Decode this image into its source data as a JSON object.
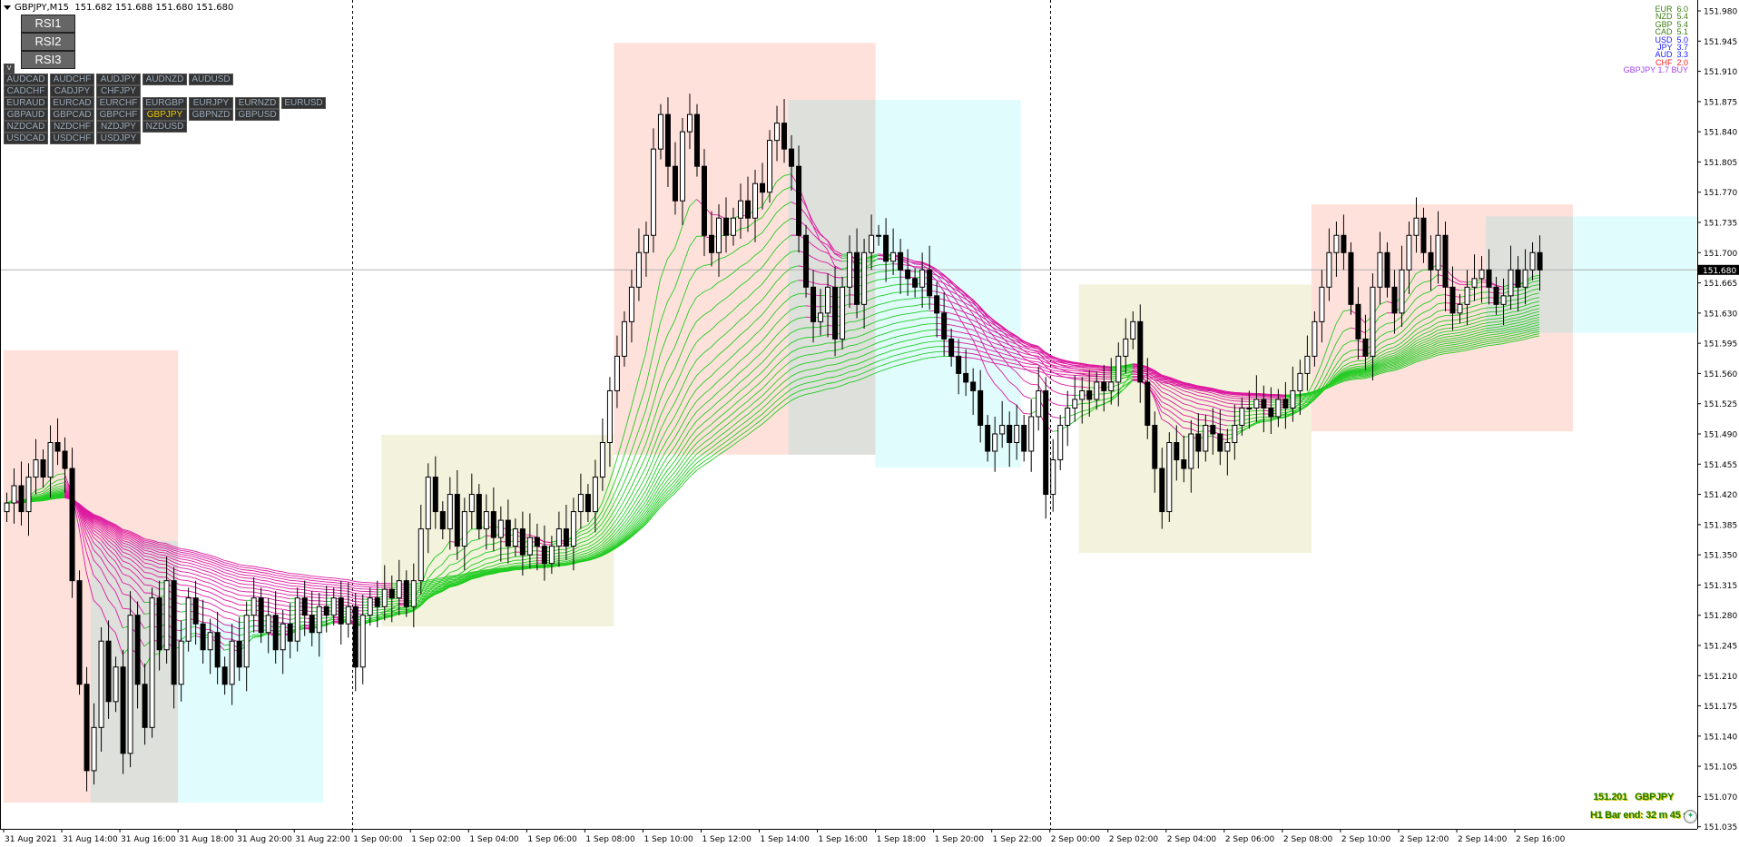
{
  "header": {
    "symbol_tf": "GBPJPY,M15",
    "ohlc": "151.682 151.688 151.680 151.680"
  },
  "rsi_buttons": [
    "RSI1",
    "RSI2",
    "RSI3"
  ],
  "pair_panel": {
    "toggle": "v",
    "rows": [
      [
        "AUDCAD",
        "AUDCHF",
        "AUDJPY",
        "AUDNZD",
        "AUDUSD"
      ],
      [
        "CADCHF",
        "CADJPY",
        "CHFJPY"
      ],
      [
        "EURAUD",
        "EURCAD",
        "EURCHF",
        "EURGBP",
        "EURJPY",
        "EURNZD",
        "EURUSD"
      ],
      [
        "GBPAUD",
        "GBPCAD",
        "GBPCHF",
        "GBPJPY",
        "GBPNZD",
        "GBPUSD"
      ],
      [
        "NZDCAD",
        "NZDCHF",
        "NZDJPY",
        "NZDUSD"
      ],
      [
        "USDCAD",
        "USDCHF",
        "USDJPY"
      ]
    ],
    "active": "GBPJPY",
    "active_color": "#f0c800"
  },
  "strength_legend": [
    {
      "cur": "EUR",
      "val": "6.0",
      "color": "#3a7d10"
    },
    {
      "cur": "NZD",
      "val": "5.4",
      "color": "#3a7d10"
    },
    {
      "cur": "GBP",
      "val": "5.4",
      "color": "#3a7d10"
    },
    {
      "cur": "CAD",
      "val": "5.1",
      "color": "#3a7d10"
    },
    {
      "cur": "USD",
      "val": "5.0",
      "color": "#2020ff"
    },
    {
      "cur": "JPY",
      "val": "3.7",
      "color": "#2020ff"
    },
    {
      "cur": "AUD",
      "val": "3.3",
      "color": "#2020ff"
    },
    {
      "cur": "CHF",
      "val": "2.0",
      "color": "#ff2020"
    },
    {
      "cur": "GBPJPY 1.7 BUY",
      "val": "",
      "color": "#a040f0"
    }
  ],
  "info": {
    "price_line": "151.201   GBPJPY",
    "bar_end": "H1 Bar end: 32 m 45 s"
  },
  "chart_data": {
    "type": "candlestick",
    "symbol": "GBPJPY",
    "timeframe": "M15",
    "ylim": [
      151.035,
      151.98
    ],
    "y_ticks": [
      "151.980",
      "151.945",
      "151.910",
      "151.875",
      "151.840",
      "151.805",
      "151.770",
      "151.735",
      "151.700",
      "151.665",
      "151.630",
      "151.595",
      "151.560",
      "151.525",
      "151.490",
      "151.455",
      "151.420",
      "151.385",
      "151.350",
      "151.315",
      "151.280",
      "151.245",
      "151.210",
      "151.175",
      "151.140",
      "151.105",
      "151.070",
      "151.035"
    ],
    "x_ticks": [
      "31 Aug 2021",
      "31 Aug 14:00",
      "31 Aug 16:00",
      "31 Aug 18:00",
      "31 Aug 20:00",
      "31 Aug 22:00",
      "1 Sep 00:00",
      "1 Sep 02:00",
      "1 Sep 04:00",
      "1 Sep 06:00",
      "1 Sep 08:00",
      "1 Sep 10:00",
      "1 Sep 12:00",
      "1 Sep 14:00",
      "1 Sep 16:00",
      "1 Sep 18:00",
      "1 Sep 20:00",
      "1 Sep 22:00",
      "2 Sep 00:00",
      "2 Sep 02:00",
      "2 Sep 04:00",
      "2 Sep 06:00",
      "2 Sep 08:00",
      "2 Sep 10:00",
      "2 Sep 12:00",
      "2 Sep 14:00",
      "2 Sep 16:00"
    ],
    "current_price": "151.680",
    "closes": [
      151.41,
      151.43,
      151.4,
      151.44,
      151.46,
      151.44,
      151.48,
      151.47,
      151.45,
      151.32,
      151.2,
      151.1,
      151.15,
      151.25,
      151.18,
      151.22,
      151.12,
      151.28,
      151.2,
      151.15,
      151.3,
      151.24,
      151.32,
      151.2,
      151.25,
      151.3,
      151.27,
      151.24,
      151.26,
      151.22,
      151.2,
      151.25,
      151.22,
      151.28,
      151.3,
      151.26,
      151.28,
      151.24,
      151.27,
      151.25,
      151.3,
      151.28,
      151.26,
      151.29,
      151.28,
      151.3,
      151.27,
      151.29,
      151.22,
      151.28,
      151.3,
      151.29,
      151.31,
      151.3,
      151.32,
      151.29,
      151.32,
      151.38,
      151.44,
      151.4,
      151.38,
      151.42,
      151.36,
      151.4,
      151.42,
      151.38,
      151.4,
      151.37,
      151.39,
      151.36,
      151.38,
      151.35,
      151.37,
      151.36,
      151.34,
      151.36,
      151.38,
      151.36,
      151.4,
      151.42,
      151.4,
      151.44,
      151.48,
      151.54,
      151.58,
      151.62,
      151.66,
      151.7,
      151.72,
      151.82,
      151.86,
      151.8,
      151.76,
      151.84,
      151.86,
      151.8,
      151.72,
      151.7,
      151.74,
      151.72,
      151.74,
      151.76,
      151.74,
      151.78,
      151.77,
      151.83,
      151.85,
      151.82,
      151.8,
      151.72,
      151.66,
      151.62,
      151.63,
      151.66,
      151.6,
      151.66,
      151.7,
      151.64,
      151.7,
      151.72,
      151.72,
      151.69,
      151.7,
      151.68,
      151.67,
      151.66,
      151.68,
      151.65,
      151.63,
      151.6,
      151.58,
      151.56,
      151.55,
      151.54,
      151.5,
      151.47,
      151.49,
      151.5,
      151.48,
      151.5,
      151.47,
      151.51,
      151.54,
      151.42,
      151.46,
      151.5,
      151.52,
      151.53,
      151.54,
      151.53,
      151.55,
      151.54,
      151.55,
      151.58,
      151.6,
      151.62,
      151.55,
      151.5,
      151.45,
      151.4,
      151.48,
      151.46,
      151.45,
      151.49,
      151.47,
      151.5,
      151.49,
      151.47,
      151.48,
      151.5,
      151.52,
      151.52,
      151.53,
      151.52,
      151.51,
      151.53,
      151.52,
      151.54,
      151.56,
      151.58,
      151.62,
      151.66,
      151.7,
      151.72,
      151.7,
      151.64,
      151.6,
      151.58,
      151.66,
      151.7,
      151.66,
      151.63,
      151.68,
      151.72,
      151.74,
      151.7,
      151.68,
      151.72,
      151.66,
      151.63,
      151.64,
      151.66,
      151.67,
      151.68,
      151.66,
      151.64,
      151.65,
      151.68,
      151.66,
      151.68,
      151.7,
      151.68
    ],
    "session_boxes": [
      {
        "from": "31 Aug 12:00",
        "to": "31 Aug 18:00",
        "high": 151.587,
        "low": 151.063,
        "color": "#ffe1dc"
      },
      {
        "from": "31 Aug 15:00",
        "to": "31 Aug 18:00",
        "high": 151.366,
        "low": 151.063,
        "color": "#dee0dc"
      },
      {
        "from": "31 Aug 18:00",
        "to": "31 Aug 23:00",
        "high": 151.272,
        "low": 151.063,
        "color": "#e0fcfd"
      },
      {
        "from": "1 Sep 01:00",
        "to": "1 Sep 09:00",
        "high": 151.489,
        "low": 151.267,
        "color": "#f3f2dc"
      },
      {
        "from": "1 Sep 09:00",
        "to": "1 Sep 18:00",
        "high": 151.943,
        "low": 151.466,
        "color": "#ffe1dc"
      },
      {
        "from": "1 Sep 15:00",
        "to": "1 Sep 18:00",
        "high": 151.877,
        "low": 151.466,
        "color": "#dee0dc"
      },
      {
        "from": "1 Sep 18:00",
        "to": "1 Sep 23:00",
        "high": 151.877,
        "low": 151.451,
        "color": "#e0fcfd"
      },
      {
        "from": "2 Sep 01:00",
        "to": "2 Sep 09:00",
        "high": 151.663,
        "low": 151.352,
        "color": "#f3f2dc"
      },
      {
        "from": "2 Sep 09:00",
        "to": "2 Sep 18:00",
        "high": 151.756,
        "low": 151.493,
        "color": "#ffe1dc"
      },
      {
        "from": "2 Sep 15:00",
        "to": "2 Sep 18:00",
        "high": 151.742,
        "low": 151.607,
        "color": "#dee0dc"
      },
      {
        "from": "2 Sep 18:00",
        "to": "2 Sep 22:15",
        "high": 151.742,
        "low": 151.607,
        "color": "#e0fcfd"
      }
    ],
    "day_separators": [
      "1 Sep 00:00",
      "2 Sep 00:00"
    ],
    "ribbon_colors": {
      "up": "#22cc22",
      "down": "#dd1aa0"
    },
    "candle_colors": {
      "bull": "#ffffff",
      "bear": "#000000",
      "outline": "#000000"
    }
  }
}
